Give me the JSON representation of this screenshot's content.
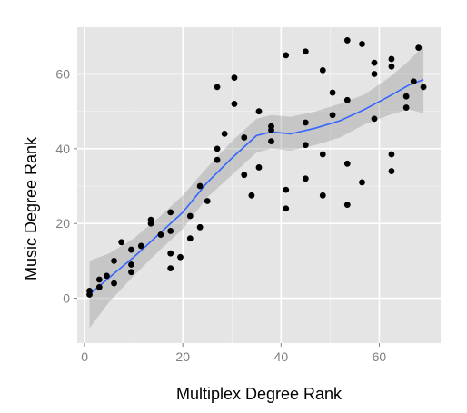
{
  "chart_data": {
    "type": "scatter",
    "title": "",
    "xlabel": "Multiplex Degree Rank",
    "ylabel": "Music Degree Rank",
    "xlim": [
      -1.5,
      72.5
    ],
    "ylim": [
      -12,
      72.5
    ],
    "x_ticks": [
      0,
      20,
      40,
      60
    ],
    "y_ticks": [
      0,
      20,
      40,
      60
    ],
    "x_tick_labels": [
      "0",
      "20",
      "40",
      "60"
    ],
    "y_tick_labels": [
      "0",
      "20",
      "40",
      "60"
    ],
    "grid": true,
    "legend": "none",
    "colors": {
      "panel": "#e5e5e5",
      "grid_major": "#ffffff",
      "grid_minor": "#f2f2f2",
      "points": "#000000",
      "smooth_line": "#3366ff",
      "confidence_band": "#999999"
    },
    "points": [
      {
        "x": 1,
        "y": 2
      },
      {
        "x": 1,
        "y": 1
      },
      {
        "x": 3,
        "y": 3
      },
      {
        "x": 3,
        "y": 5
      },
      {
        "x": 4.5,
        "y": 6
      },
      {
        "x": 6,
        "y": 10
      },
      {
        "x": 6,
        "y": 4
      },
      {
        "x": 7.5,
        "y": 15
      },
      {
        "x": 9.5,
        "y": 13
      },
      {
        "x": 9.5,
        "y": 9
      },
      {
        "x": 9.5,
        "y": 7
      },
      {
        "x": 11.5,
        "y": 14
      },
      {
        "x": 13.5,
        "y": 21
      },
      {
        "x": 13.5,
        "y": 20
      },
      {
        "x": 15.5,
        "y": 17
      },
      {
        "x": 17.5,
        "y": 23
      },
      {
        "x": 17.5,
        "y": 18
      },
      {
        "x": 17.5,
        "y": 12
      },
      {
        "x": 17.5,
        "y": 8
      },
      {
        "x": 19.5,
        "y": 11
      },
      {
        "x": 21.5,
        "y": 22
      },
      {
        "x": 21.5,
        "y": 16
      },
      {
        "x": 23.5,
        "y": 30
      },
      {
        "x": 23.5,
        "y": 19
      },
      {
        "x": 25,
        "y": 26
      },
      {
        "x": 27,
        "y": 56.5
      },
      {
        "x": 27,
        "y": 40
      },
      {
        "x": 27,
        "y": 37
      },
      {
        "x": 28.5,
        "y": 44
      },
      {
        "x": 30.5,
        "y": 59
      },
      {
        "x": 30.5,
        "y": 52
      },
      {
        "x": 32.5,
        "y": 43
      },
      {
        "x": 32.5,
        "y": 33
      },
      {
        "x": 34,
        "y": 27.5
      },
      {
        "x": 35.5,
        "y": 50
      },
      {
        "x": 35.5,
        "y": 35
      },
      {
        "x": 38,
        "y": 46
      },
      {
        "x": 38,
        "y": 45
      },
      {
        "x": 38,
        "y": 42
      },
      {
        "x": 41,
        "y": 65
      },
      {
        "x": 41,
        "y": 29
      },
      {
        "x": 41,
        "y": 24
      },
      {
        "x": 45,
        "y": 66
      },
      {
        "x": 45,
        "y": 47
      },
      {
        "x": 45,
        "y": 41
      },
      {
        "x": 45,
        "y": 32
      },
      {
        "x": 48.5,
        "y": 61
      },
      {
        "x": 48.5,
        "y": 38.5
      },
      {
        "x": 48.5,
        "y": 27.5
      },
      {
        "x": 50.5,
        "y": 55
      },
      {
        "x": 50.5,
        "y": 49
      },
      {
        "x": 53.5,
        "y": 69
      },
      {
        "x": 53.5,
        "y": 53
      },
      {
        "x": 53.5,
        "y": 36
      },
      {
        "x": 53.5,
        "y": 25
      },
      {
        "x": 56.5,
        "y": 68
      },
      {
        "x": 56.5,
        "y": 31
      },
      {
        "x": 59,
        "y": 63
      },
      {
        "x": 59,
        "y": 60
      },
      {
        "x": 59,
        "y": 48
      },
      {
        "x": 62.5,
        "y": 64
      },
      {
        "x": 62.5,
        "y": 62
      },
      {
        "x": 62.5,
        "y": 38.5
      },
      {
        "x": 62.5,
        "y": 34
      },
      {
        "x": 65.5,
        "y": 54
      },
      {
        "x": 65.5,
        "y": 51
      },
      {
        "x": 67,
        "y": 58
      },
      {
        "x": 68,
        "y": 67
      },
      {
        "x": 69,
        "y": 56.5
      }
    ],
    "smooth": {
      "method": "loess",
      "x": [
        1,
        5,
        10,
        15,
        20,
        25,
        30,
        35,
        38,
        42,
        47,
        52,
        57,
        62,
        66,
        69
      ],
      "y": [
        1,
        5.5,
        11,
        17,
        23,
        31,
        37.5,
        43.5,
        44.5,
        44,
        45.5,
        47.5,
        50.5,
        54,
        57,
        58.5
      ],
      "lower": [
        -8,
        -1,
        6,
        12.5,
        18.5,
        27,
        33,
        39,
        40,
        39.5,
        41,
        43,
        46.5,
        49,
        50.5,
        49.5
      ],
      "upper": [
        10,
        12,
        16,
        21.5,
        27.5,
        35,
        42,
        48,
        49,
        48.5,
        50,
        52,
        54.5,
        59,
        63.5,
        67.5
      ]
    }
  }
}
